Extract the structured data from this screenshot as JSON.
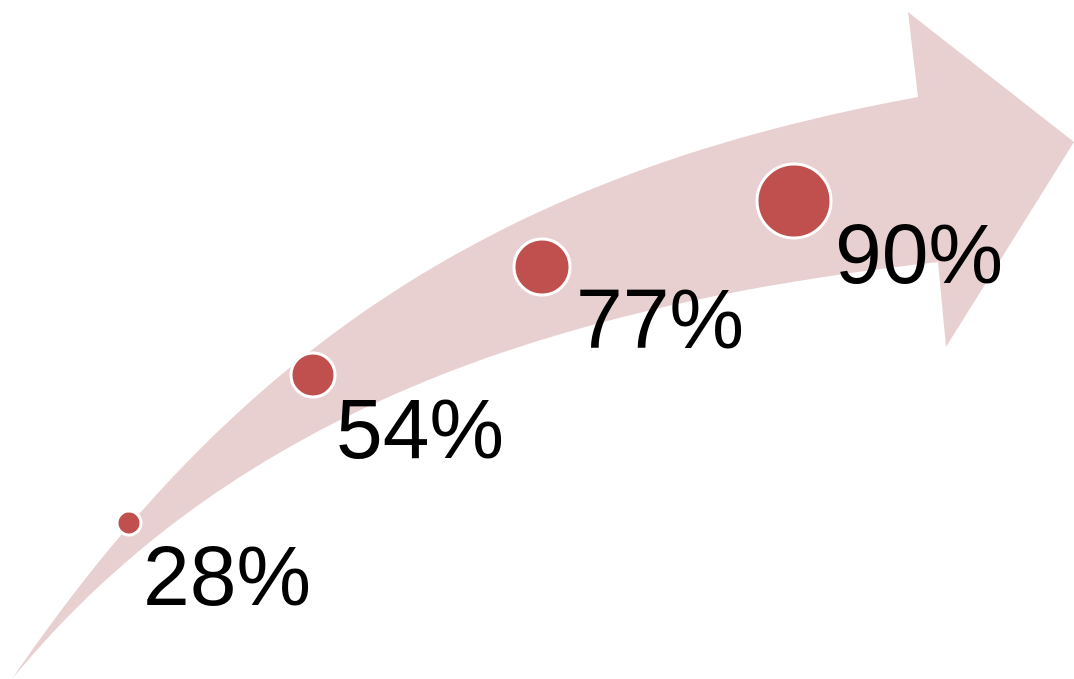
{
  "colors": {
    "arrow": "#e8d0d1",
    "dot": "#c0504d",
    "dot_outline": "#ffffff",
    "text": "#000000"
  },
  "steps": [
    {
      "label": "28%",
      "value": 28
    },
    {
      "label": "54%",
      "value": 54
    },
    {
      "label": "77%",
      "value": 77
    },
    {
      "label": "90%",
      "value": 90
    }
  ]
}
